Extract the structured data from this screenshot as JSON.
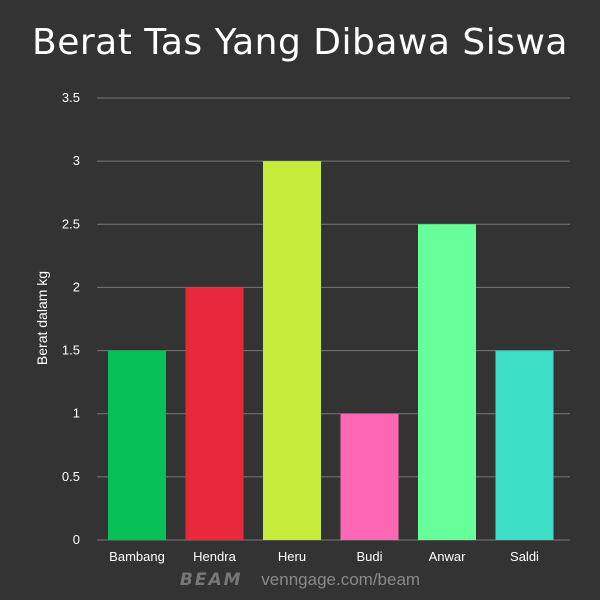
{
  "chart_data": {
    "type": "bar",
    "title": "Berat Tas Yang Dibawa Siswa",
    "ylabel": "Berat dalam kg",
    "xlabel": "",
    "categories": [
      "Bambang",
      "Hendra",
      "Heru",
      "Budi",
      "Anwar",
      "Saldi"
    ],
    "values": [
      1.5,
      2,
      3,
      1,
      2.5,
      1.5
    ],
    "colors": [
      "#07c158",
      "#e8293b",
      "#c5ec3a",
      "#fd67b3",
      "#66ff99",
      "#3cdfc5"
    ],
    "ylim": [
      0,
      3.5
    ],
    "yticks": [
      "0",
      "0.5",
      "1",
      "1.5",
      "2",
      "2.5",
      "3",
      "3.5"
    ],
    "grid": true,
    "legend": "none"
  },
  "footer": {
    "brand": "BEAM",
    "url": "venngage.com/beam"
  },
  "theme": {
    "background": "#333333",
    "grid": "#777777",
    "text": "#ffffff"
  }
}
